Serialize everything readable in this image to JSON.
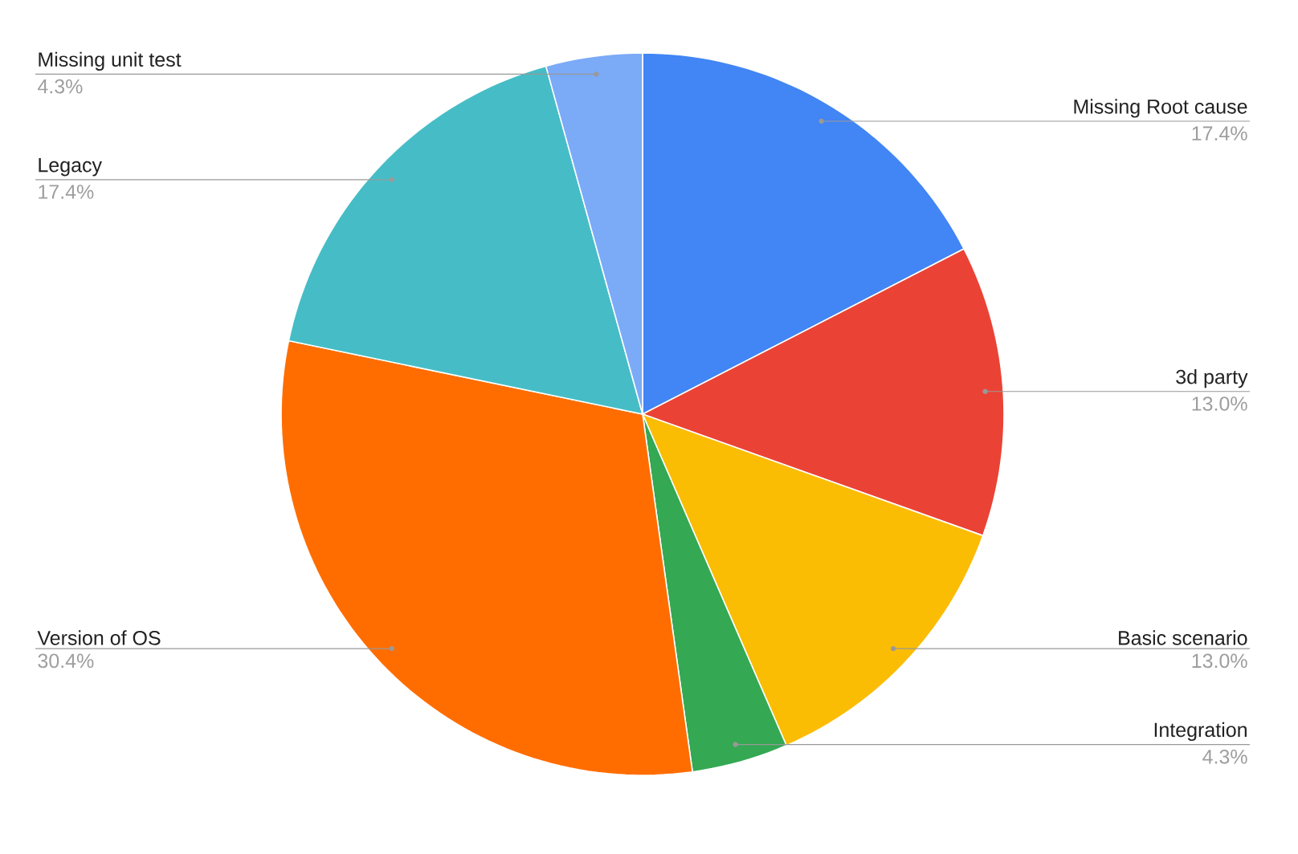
{
  "chart_data": {
    "type": "pie",
    "categories": [
      "Missing Root cause",
      "3d party",
      "Basic scenario",
      "Integration",
      "Version of OS",
      "Legacy",
      "Missing unit test"
    ],
    "values": [
      17.4,
      13.0,
      13.0,
      4.3,
      30.4,
      17.4,
      4.3
    ],
    "value_labels": [
      "17.4%",
      "13.0%",
      "13.0%",
      "4.3%",
      "30.4%",
      "17.4%",
      "4.3%"
    ],
    "colors": [
      "#4285f4",
      "#ea4335",
      "#fbbc04",
      "#34a853",
      "#ff6d01",
      "#46bdc6",
      "#7baaf7"
    ]
  }
}
